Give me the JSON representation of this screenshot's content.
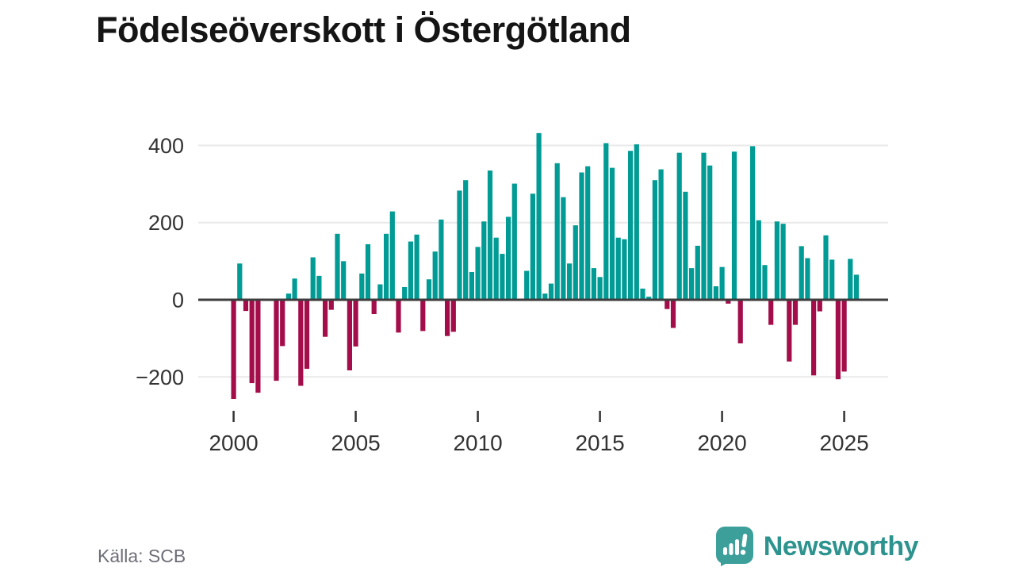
{
  "title": "Födelseöverskott i Östergötland",
  "source": "Källa: SCB",
  "branding": {
    "name": "Newsworthy",
    "icon": "bar-chart-speech-bubble-icon"
  },
  "colors": {
    "positive": "#009b94",
    "negative": "#a30d49",
    "axis": "#3d3d3d",
    "grid": "#e9e9e9",
    "text": "#333333",
    "muted": "#6e6e78",
    "brand_icon": "#3c9f9a",
    "brand_text": "#2d938e"
  },
  "chart_data": {
    "type": "bar",
    "title": "Födelseöverskott i Östergötland",
    "frequency": "quarterly",
    "x_start": {
      "year": 2000,
      "quarter": 1
    },
    "x_end": {
      "year": 2025,
      "quarter": 3
    },
    "values": [
      -257,
      94,
      -29,
      -216,
      -241,
      0,
      0,
      -210,
      -120,
      16,
      55,
      -223,
      -179,
      110,
      62,
      -96,
      -26,
      171,
      100,
      -183,
      -121,
      68,
      144,
      -37,
      40,
      171,
      229,
      -85,
      33,
      151,
      169,
      -81,
      53,
      125,
      208,
      -94,
      -83,
      283,
      310,
      72,
      137,
      203,
      335,
      161,
      119,
      215,
      301,
      0,
      75,
      275,
      432,
      16,
      42,
      354,
      266,
      94,
      193,
      330,
      346,
      82,
      59,
      406,
      342,
      161,
      157,
      386,
      403,
      29,
      8,
      310,
      338,
      -24,
      -73,
      381,
      280,
      82,
      140,
      381,
      348,
      35,
      85,
      -10,
      384,
      -113,
      0,
      398,
      206,
      90,
      -65,
      203,
      197,
      -160,
      -65,
      139,
      108,
      -196,
      -30,
      167,
      104,
      -206,
      -186,
      106,
      65
    ],
    "ylim": [
      -280,
      450
    ],
    "yticks": [
      400,
      200,
      0,
      -200
    ],
    "ytick_labels": [
      "400",
      "200",
      "0",
      "−200"
    ],
    "xticks": [
      2000,
      2005,
      2010,
      2015,
      2020,
      2025
    ],
    "xlabel": "",
    "ylabel": "",
    "grid": "horizontal",
    "legend": "none",
    "positive_color": "#009b94",
    "negative_color": "#a30d49"
  }
}
